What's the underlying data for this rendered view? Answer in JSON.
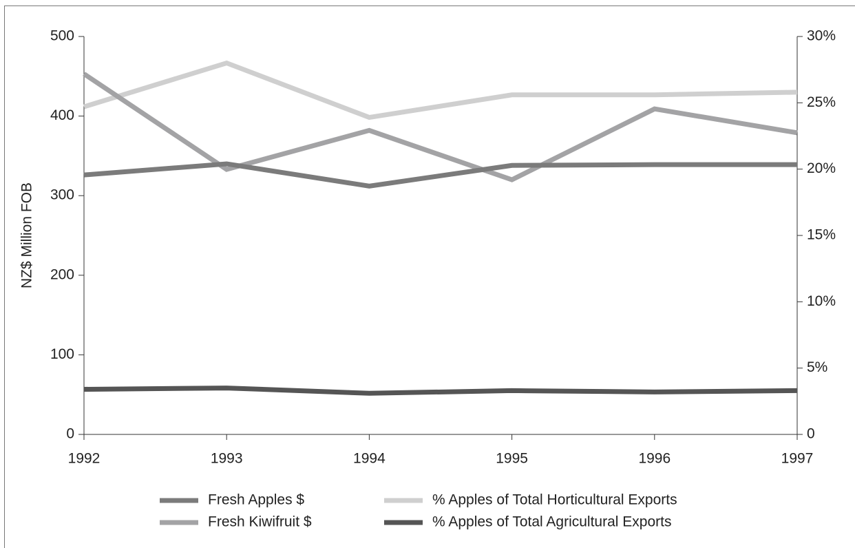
{
  "chart_data": {
    "type": "line",
    "y_label": "NZ$ Million FOB",
    "x": [
      1992,
      1993,
      1994,
      1995,
      1996,
      1997
    ],
    "xlim": [
      1992,
      1997
    ],
    "xticks": [
      1992,
      1993,
      1994,
      1995,
      1996,
      1997
    ],
    "ylim": [
      0,
      500
    ],
    "yticks": [
      0,
      100,
      200,
      300,
      400,
      500
    ],
    "y2lim": [
      0,
      30
    ],
    "y2ticks": [
      0,
      {
        "value": 5,
        "label": "5%"
      },
      {
        "value": 10,
        "label": "10%"
      },
      {
        "value": 15,
        "label": "15%"
      },
      {
        "value": 20,
        "label": "20%"
      },
      {
        "value": 25,
        "label": "25%"
      },
      {
        "value": 30,
        "label": "30%"
      }
    ],
    "series": [
      {
        "name": "Fresh Apples $",
        "color": "#7b7b7b",
        "values": [
          326,
          340,
          312,
          338,
          339,
          339
        ]
      },
      {
        "name": "Fresh Kiwifruit $",
        "color": "#a3a3a5",
        "values": [
          453,
          333,
          382,
          320,
          409,
          379
        ]
      },
      {
        "name": "% Apples of Total Horticultural Exports",
        "color": "#cfcfcf",
        "axis": "y2",
        "values": [
          24.7,
          28.0,
          23.9,
          25.6,
          25.6,
          25.8
        ]
      },
      {
        "name": "% Apples of Total Agricultural Exports",
        "color": "#555555",
        "axis": "y2",
        "values": [
          3.4,
          3.5,
          3.1,
          3.3,
          3.2,
          3.3
        ]
      }
    ]
  }
}
